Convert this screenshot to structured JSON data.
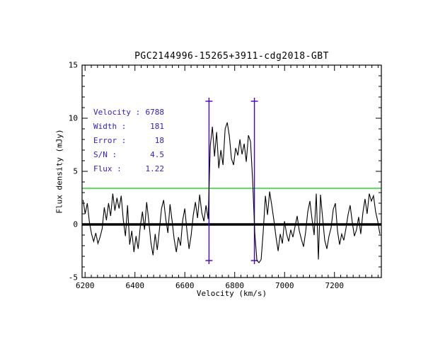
{
  "window": {
    "background": "#ffffff"
  },
  "title": "PGC2144996-15265+3911-cdg2018-GBT",
  "annotation": {
    "color": "#3322bb",
    "rows": [
      {
        "label": "Velocity :",
        "value": "6788"
      },
      {
        "label": "Width :",
        "value": "181"
      },
      {
        "label": "Error :",
        "value": "18"
      },
      {
        "label": "S/N :",
        "value": "4.5"
      },
      {
        "label": "Flux :",
        "value": "1.22"
      }
    ]
  },
  "chart_data": {
    "type": "line",
    "title": "PGC2144996-15265+3911-cdg2018-GBT",
    "xlabel": "Velocity (km/s)",
    "ylabel": "Flux density (mJy)",
    "xlim": [
      6188,
      7388
    ],
    "ylim": [
      -5,
      15
    ],
    "x_major_ticks": [
      6200,
      6400,
      6600,
      6800,
      7000,
      7200
    ],
    "x_minor_step": 25,
    "y_major_ticks": [
      -5,
      0,
      5,
      10,
      15
    ],
    "y_minor_step": 1,
    "grid": false,
    "legend": "none",
    "frame_color": "#000000",
    "series": [
      {
        "name": "hi-spectrum",
        "color": "#000000",
        "x_start": 6192,
        "x_step": 8.5,
        "values": [
          2.3,
          1.0,
          2.0,
          0.2,
          -0.9,
          -1.6,
          -0.8,
          -1.8,
          -1.2,
          -0.4,
          1.6,
          0.4,
          2.0,
          0.8,
          2.9,
          1.3,
          2.5,
          1.5,
          2.7,
          0.4,
          -1.1,
          1.8,
          -1.9,
          -0.6,
          -2.6,
          -1.1,
          -2.3,
          -0.2,
          1.2,
          -0.5,
          2.1,
          0.3,
          -1.7,
          -2.9,
          -0.9,
          -2.4,
          -0.5,
          1.5,
          2.3,
          0.5,
          -0.8,
          1.9,
          0.3,
          -1.4,
          -2.6,
          -1.2,
          -2.0,
          0.4,
          1.5,
          -0.6,
          -2.3,
          -1.0,
          0.9,
          2.1,
          0.6,
          2.8,
          1.1,
          0.3,
          1.8,
          0.5,
          7.4,
          9.2,
          6.4,
          8.7,
          5.3,
          7.0,
          5.6,
          9.0,
          9.6,
          8.3,
          6.2,
          5.6,
          7.2,
          6.5,
          8.0,
          6.6,
          7.6,
          5.9,
          8.4,
          7.8,
          4.1,
          -0.8,
          -3.4,
          -3.6,
          -3.3,
          -0.6,
          2.7,
          0.9,
          3.1,
          1.8,
          0.4,
          -1.2,
          -2.5,
          -0.9,
          -1.8,
          0.3,
          -0.9,
          -1.6,
          -0.5,
          -1.2,
          -0.2,
          0.8,
          -0.6,
          -1.4,
          -2.1,
          -0.7,
          1.2,
          2.2,
          0.5,
          -1.0,
          2.9,
          -3.3,
          2.8,
          0.6,
          -1.5,
          -2.3,
          -1.1,
          -0.3,
          1.4,
          2.0,
          -0.6,
          -1.9,
          -0.9,
          -1.5,
          -0.4,
          0.9,
          1.8,
          0.2,
          -1.1,
          -0.5,
          0.7,
          -0.9,
          1.1,
          2.4,
          1.0,
          2.9,
          2.2,
          2.7,
          1.2,
          0.3,
          -0.9
        ]
      }
    ],
    "baseline": {
      "y": 0,
      "color": "#000000",
      "width": 3.5
    },
    "threshold_line": {
      "y": 3.4,
      "color": "#00cc00"
    },
    "signal_markers": {
      "x_values": [
        6697,
        6879
      ],
      "y_top": 11.6,
      "y_bottom": -3.4,
      "color": "#4400cc"
    },
    "measurements": {
      "velocity_kms": 6788,
      "width_kms": 181,
      "error_kms": 18,
      "s_n": 4.5,
      "flux_jy_kms": 1.22
    }
  }
}
